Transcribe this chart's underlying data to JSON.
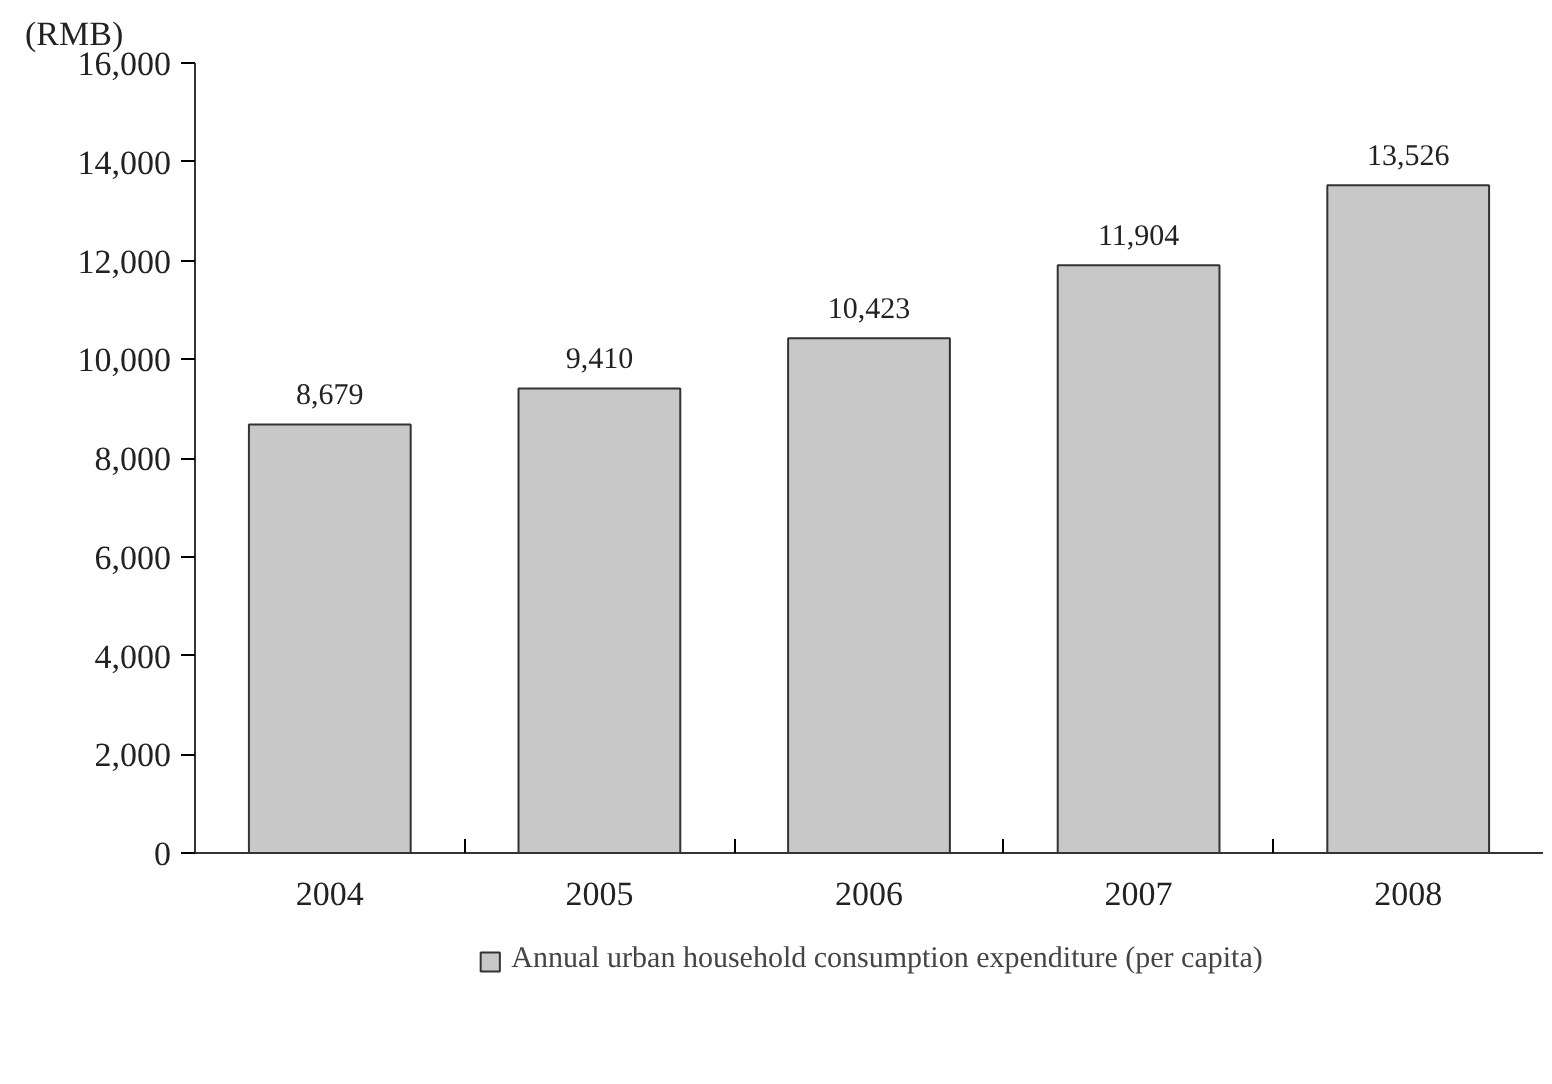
{
  "chart_data": {
    "type": "bar",
    "ylabel": "(RMB)",
    "categories": [
      "2004",
      "2005",
      "2006",
      "2007",
      "2008"
    ],
    "series": [
      {
        "name": "Annual urban household consumption expenditure (per capita)",
        "color": "#c8c8c8",
        "values": [
          8679,
          9410,
          10423,
          11904,
          13526
        ],
        "value_labels": [
          "8,679",
          "9,410",
          "10,423",
          "11,904",
          "13,526"
        ]
      }
    ],
    "ylim": [
      0,
      16000
    ],
    "yticks": [
      {
        "value": 0,
        "label": "0"
      },
      {
        "value": 2000,
        "label": "2,000"
      },
      {
        "value": 4000,
        "label": "4,000"
      },
      {
        "value": 6000,
        "label": "6,000"
      },
      {
        "value": 8000,
        "label": "8,000"
      },
      {
        "value": 10000,
        "label": "10,000"
      },
      {
        "value": 12000,
        "label": "12,000"
      },
      {
        "value": 14000,
        "label": "14,000"
      },
      {
        "value": 16000,
        "label": "16,000"
      }
    ],
    "grid": false,
    "legend": "bottom"
  }
}
